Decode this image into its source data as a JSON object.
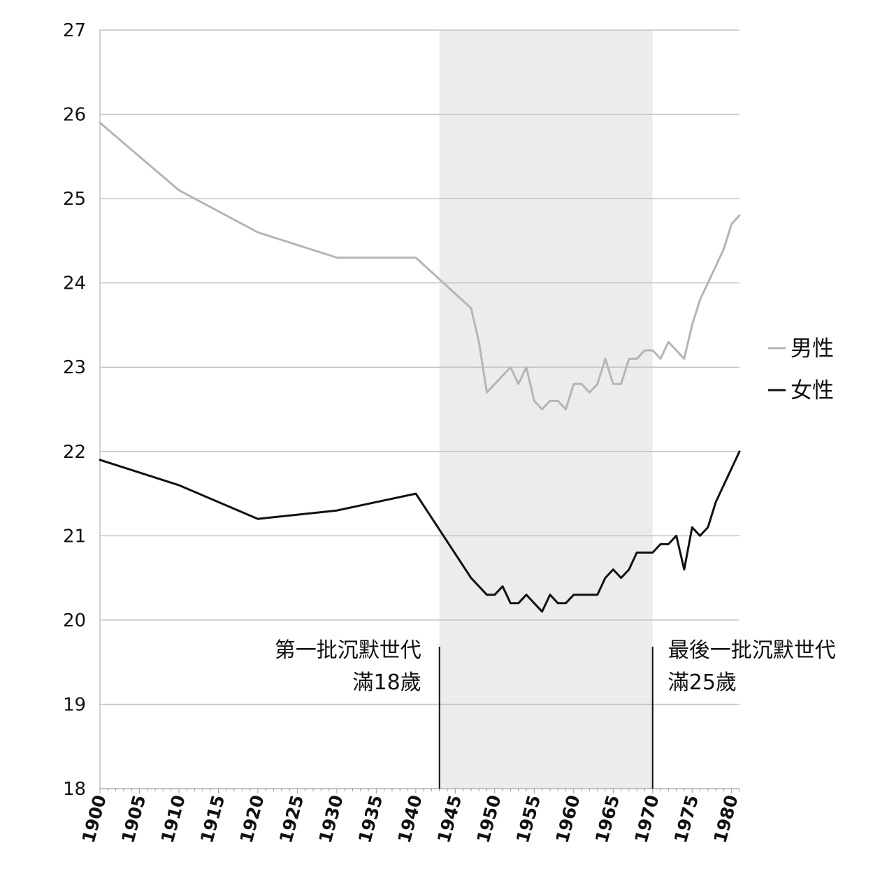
{
  "chart_data": {
    "type": "line",
    "title": "",
    "xlabel": "",
    "ylabel": "",
    "xlim": [
      1900,
      1981
    ],
    "ylim": [
      18,
      27
    ],
    "yticks": [
      "18",
      "19",
      "20",
      "21",
      "22",
      "23",
      "24",
      "25",
      "26",
      "27"
    ],
    "xticks": [
      "1900",
      "1905",
      "1910",
      "1915",
      "1920",
      "1925",
      "1930",
      "1935",
      "1940",
      "1945",
      "1950",
      "1955",
      "1960",
      "1965",
      "1970",
      "1975",
      "1980"
    ],
    "grid": "horizontal",
    "legend": "right",
    "shaded_range": [
      1943,
      1970
    ],
    "series": [
      {
        "name": "男性",
        "color": "#b5b5b5",
        "points": [
          [
            1900,
            25.9
          ],
          [
            1910,
            25.1
          ],
          [
            1920,
            24.6
          ],
          [
            1930,
            24.3
          ],
          [
            1940,
            24.3
          ],
          [
            1947,
            23.7
          ],
          [
            1948,
            23.3
          ],
          [
            1949,
            22.7
          ],
          [
            1950,
            22.8
          ],
          [
            1951,
            22.9
          ],
          [
            1952,
            23.0
          ],
          [
            1953,
            22.8
          ],
          [
            1954,
            23.0
          ],
          [
            1955,
            22.6
          ],
          [
            1956,
            22.5
          ],
          [
            1957,
            22.6
          ],
          [
            1958,
            22.6
          ],
          [
            1959,
            22.5
          ],
          [
            1960,
            22.8
          ],
          [
            1961,
            22.8
          ],
          [
            1962,
            22.7
          ],
          [
            1963,
            22.8
          ],
          [
            1964,
            23.1
          ],
          [
            1965,
            22.8
          ],
          [
            1966,
            22.8
          ],
          [
            1967,
            23.1
          ],
          [
            1968,
            23.1
          ],
          [
            1969,
            23.2
          ],
          [
            1970,
            23.2
          ],
          [
            1971,
            23.1
          ],
          [
            1972,
            23.3
          ],
          [
            1973,
            23.2
          ],
          [
            1974,
            23.1
          ],
          [
            1975,
            23.5
          ],
          [
            1976,
            23.8
          ],
          [
            1977,
            24.0
          ],
          [
            1978,
            24.2
          ],
          [
            1979,
            24.4
          ],
          [
            1980,
            24.7
          ],
          [
            1981,
            24.8
          ]
        ]
      },
      {
        "name": "女性",
        "color": "#111111",
        "points": [
          [
            1900,
            21.9
          ],
          [
            1910,
            21.6
          ],
          [
            1920,
            21.2
          ],
          [
            1930,
            21.3
          ],
          [
            1940,
            21.5
          ],
          [
            1947,
            20.5
          ],
          [
            1948,
            20.4
          ],
          [
            1949,
            20.3
          ],
          [
            1950,
            20.3
          ],
          [
            1951,
            20.4
          ],
          [
            1952,
            20.2
          ],
          [
            1953,
            20.2
          ],
          [
            1954,
            20.3
          ],
          [
            1955,
            20.2
          ],
          [
            1956,
            20.1
          ],
          [
            1957,
            20.3
          ],
          [
            1958,
            20.2
          ],
          [
            1959,
            20.2
          ],
          [
            1960,
            20.3
          ],
          [
            1961,
            20.3
          ],
          [
            1962,
            20.3
          ],
          [
            1963,
            20.3
          ],
          [
            1964,
            20.5
          ],
          [
            1965,
            20.6
          ],
          [
            1966,
            20.5
          ],
          [
            1967,
            20.6
          ],
          [
            1968,
            20.8
          ],
          [
            1969,
            20.8
          ],
          [
            1970,
            20.8
          ],
          [
            1971,
            20.9
          ],
          [
            1972,
            20.9
          ],
          [
            1973,
            21.0
          ],
          [
            1974,
            20.6
          ],
          [
            1975,
            21.1
          ],
          [
            1976,
            21.0
          ],
          [
            1977,
            21.1
          ],
          [
            1978,
            21.4
          ],
          [
            1979,
            21.6
          ],
          [
            1980,
            21.8
          ],
          [
            1981,
            22.0
          ]
        ]
      }
    ],
    "annotations": [
      {
        "x": 1943,
        "lines": [
          "第一批沉默世代",
          "滿18歲"
        ],
        "align": "left-of-line"
      },
      {
        "x": 1970,
        "lines": [
          "最後一批沉默世代",
          "滿25歲"
        ],
        "align": "right-of-line"
      }
    ]
  }
}
